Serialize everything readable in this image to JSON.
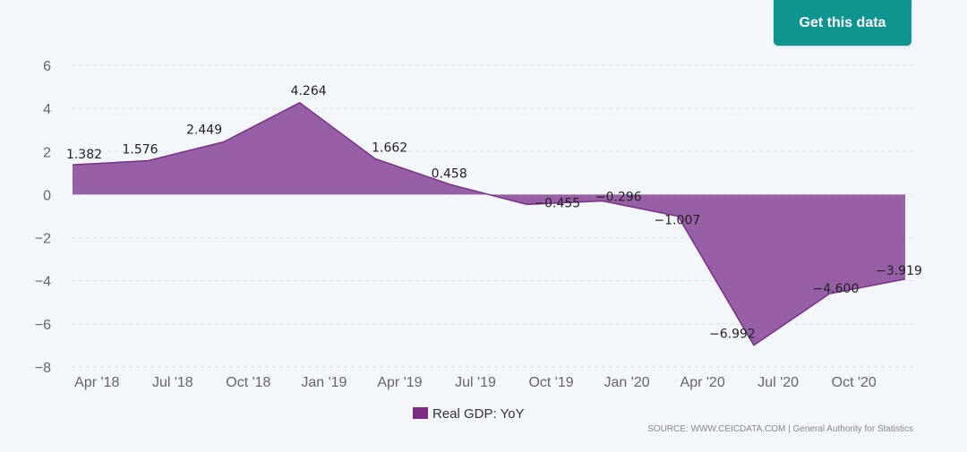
{
  "header": {
    "get_data_label": "Get this data"
  },
  "colors": {
    "area": "#8a4a9a",
    "line": "#7a2f86",
    "legend": "#7b2d84",
    "button": "#0f9590",
    "grid": "#dde3ea"
  },
  "chart_data": {
    "type": "area",
    "title": "",
    "xlabel": "",
    "ylabel": "",
    "ylim": [
      -8,
      6
    ],
    "yticks": [
      6,
      4,
      2,
      0,
      -2,
      -4,
      -6,
      -8
    ],
    "ytick_labels": [
      "6",
      "4",
      "2",
      "0",
      "−2",
      "−4",
      "−6",
      "−8"
    ],
    "xticks": [
      "Apr '18",
      "Jul '18",
      "Oct '18",
      "Jan '19",
      "Apr '19",
      "Jul '19",
      "Oct '19",
      "Jan '20",
      "Apr '20",
      "Jul '20",
      "Oct '20"
    ],
    "x": [
      "Mar '18",
      "Jun '18",
      "Sep '18",
      "Dec '18",
      "Mar '19",
      "Jun '19",
      "Sep '19",
      "Dec '19",
      "Mar '20",
      "Jun '20",
      "Sep '20",
      "Dec '20"
    ],
    "series": [
      {
        "name": "Real GDP: YoY",
        "values": [
          1.382,
          1.576,
          2.449,
          4.264,
          1.662,
          0.458,
          -0.455,
          -0.296,
          -1.007,
          -6.992,
          -4.6,
          -3.919
        ],
        "labels": [
          "1.382",
          "1.576",
          "2.449",
          "4.264",
          "1.662",
          "0.458",
          "−0.455",
          "−0.296",
          "−1.007",
          "−6.992",
          "−4.600",
          "−3.919"
        ]
      }
    ],
    "legend": "bottom-center",
    "grid": true,
    "source": "SOURCE: WWW.CEICDATA.COM | General Authority for Statistics"
  }
}
